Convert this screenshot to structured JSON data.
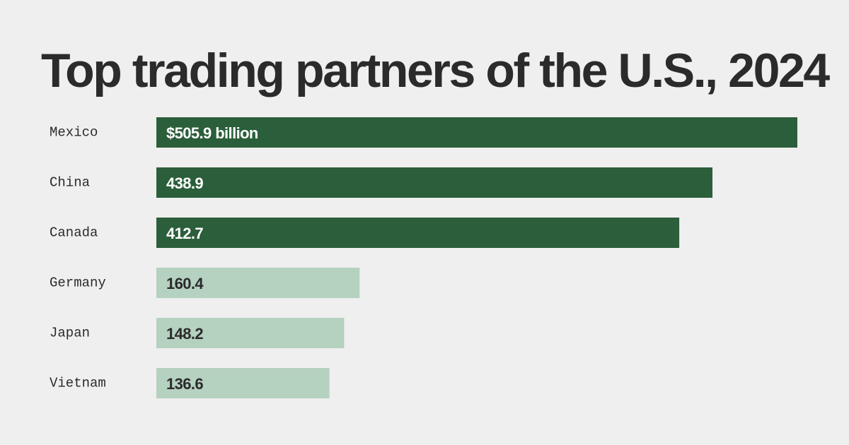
{
  "chart_data": {
    "type": "bar",
    "orientation": "horizontal",
    "title": "Top trading partners of the U.S., 2024",
    "categories": [
      "Mexico",
      "China",
      "Canada",
      "Germany",
      "Japan",
      "Vietnam"
    ],
    "values": [
      505.9,
      438.9,
      412.7,
      160.4,
      148.2,
      136.6
    ],
    "value_labels": [
      "$505.9 billion",
      "438.9",
      "412.7",
      "160.4",
      "148.2",
      "136.6"
    ],
    "xlim": [
      0,
      505.9
    ],
    "grid": false,
    "legend": "none",
    "colors": {
      "highlight": "#2b5e3a",
      "muted": "#b5d1c0",
      "highlight_text": "#ffffff",
      "muted_text": "#2b2b2b",
      "background": "#efefef"
    },
    "highlight": [
      true,
      true,
      true,
      false,
      false,
      false
    ]
  }
}
